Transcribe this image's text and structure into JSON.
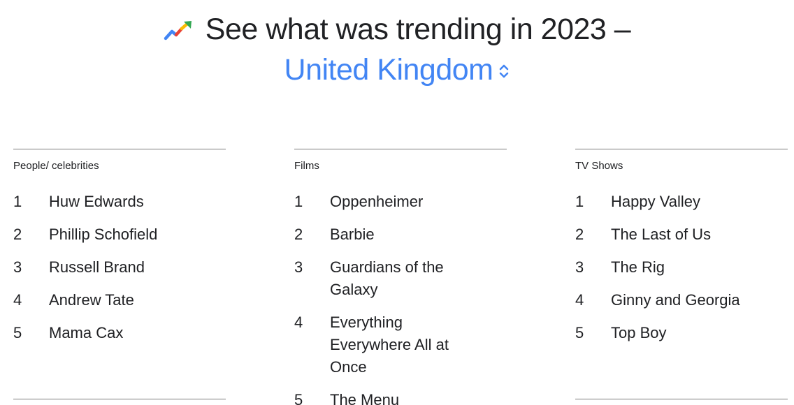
{
  "header": {
    "title": "See what was trending in 2023 –",
    "region": "United Kingdom",
    "trend_icon": "trending-up-icon",
    "region_selector_icon": "unfold-icon",
    "colors": {
      "title": "#202124",
      "region": "#4285f4",
      "icon_red": "#ea4335",
      "icon_yellow": "#fbbc04",
      "icon_green": "#34a853",
      "icon_blue": "#4285f4"
    }
  },
  "columns": [
    {
      "label": "People/ celebrities",
      "items": [
        {
          "rank": "1",
          "name": "Huw Edwards"
        },
        {
          "rank": "2",
          "name": "Phillip Schofield"
        },
        {
          "rank": "3",
          "name": "Russell Brand"
        },
        {
          "rank": "4",
          "name": "Andrew Tate"
        },
        {
          "rank": "5",
          "name": "Mama Cax"
        }
      ]
    },
    {
      "label": "Films",
      "items": [
        {
          "rank": "1",
          "name": "Oppenheimer"
        },
        {
          "rank": "2",
          "name": "Barbie"
        },
        {
          "rank": "3",
          "name": "Guardians of the Galaxy"
        },
        {
          "rank": "4",
          "name": "Everything Everywhere All at Once"
        },
        {
          "rank": "5",
          "name": "The Menu"
        }
      ]
    },
    {
      "label": "TV Shows",
      "items": [
        {
          "rank": "1",
          "name": "Happy Valley"
        },
        {
          "rank": "2",
          "name": "The Last of Us"
        },
        {
          "rank": "3",
          "name": "The Rig"
        },
        {
          "rank": "4",
          "name": "Ginny and Georgia"
        },
        {
          "rank": "5",
          "name": "Top Boy"
        }
      ]
    }
  ]
}
